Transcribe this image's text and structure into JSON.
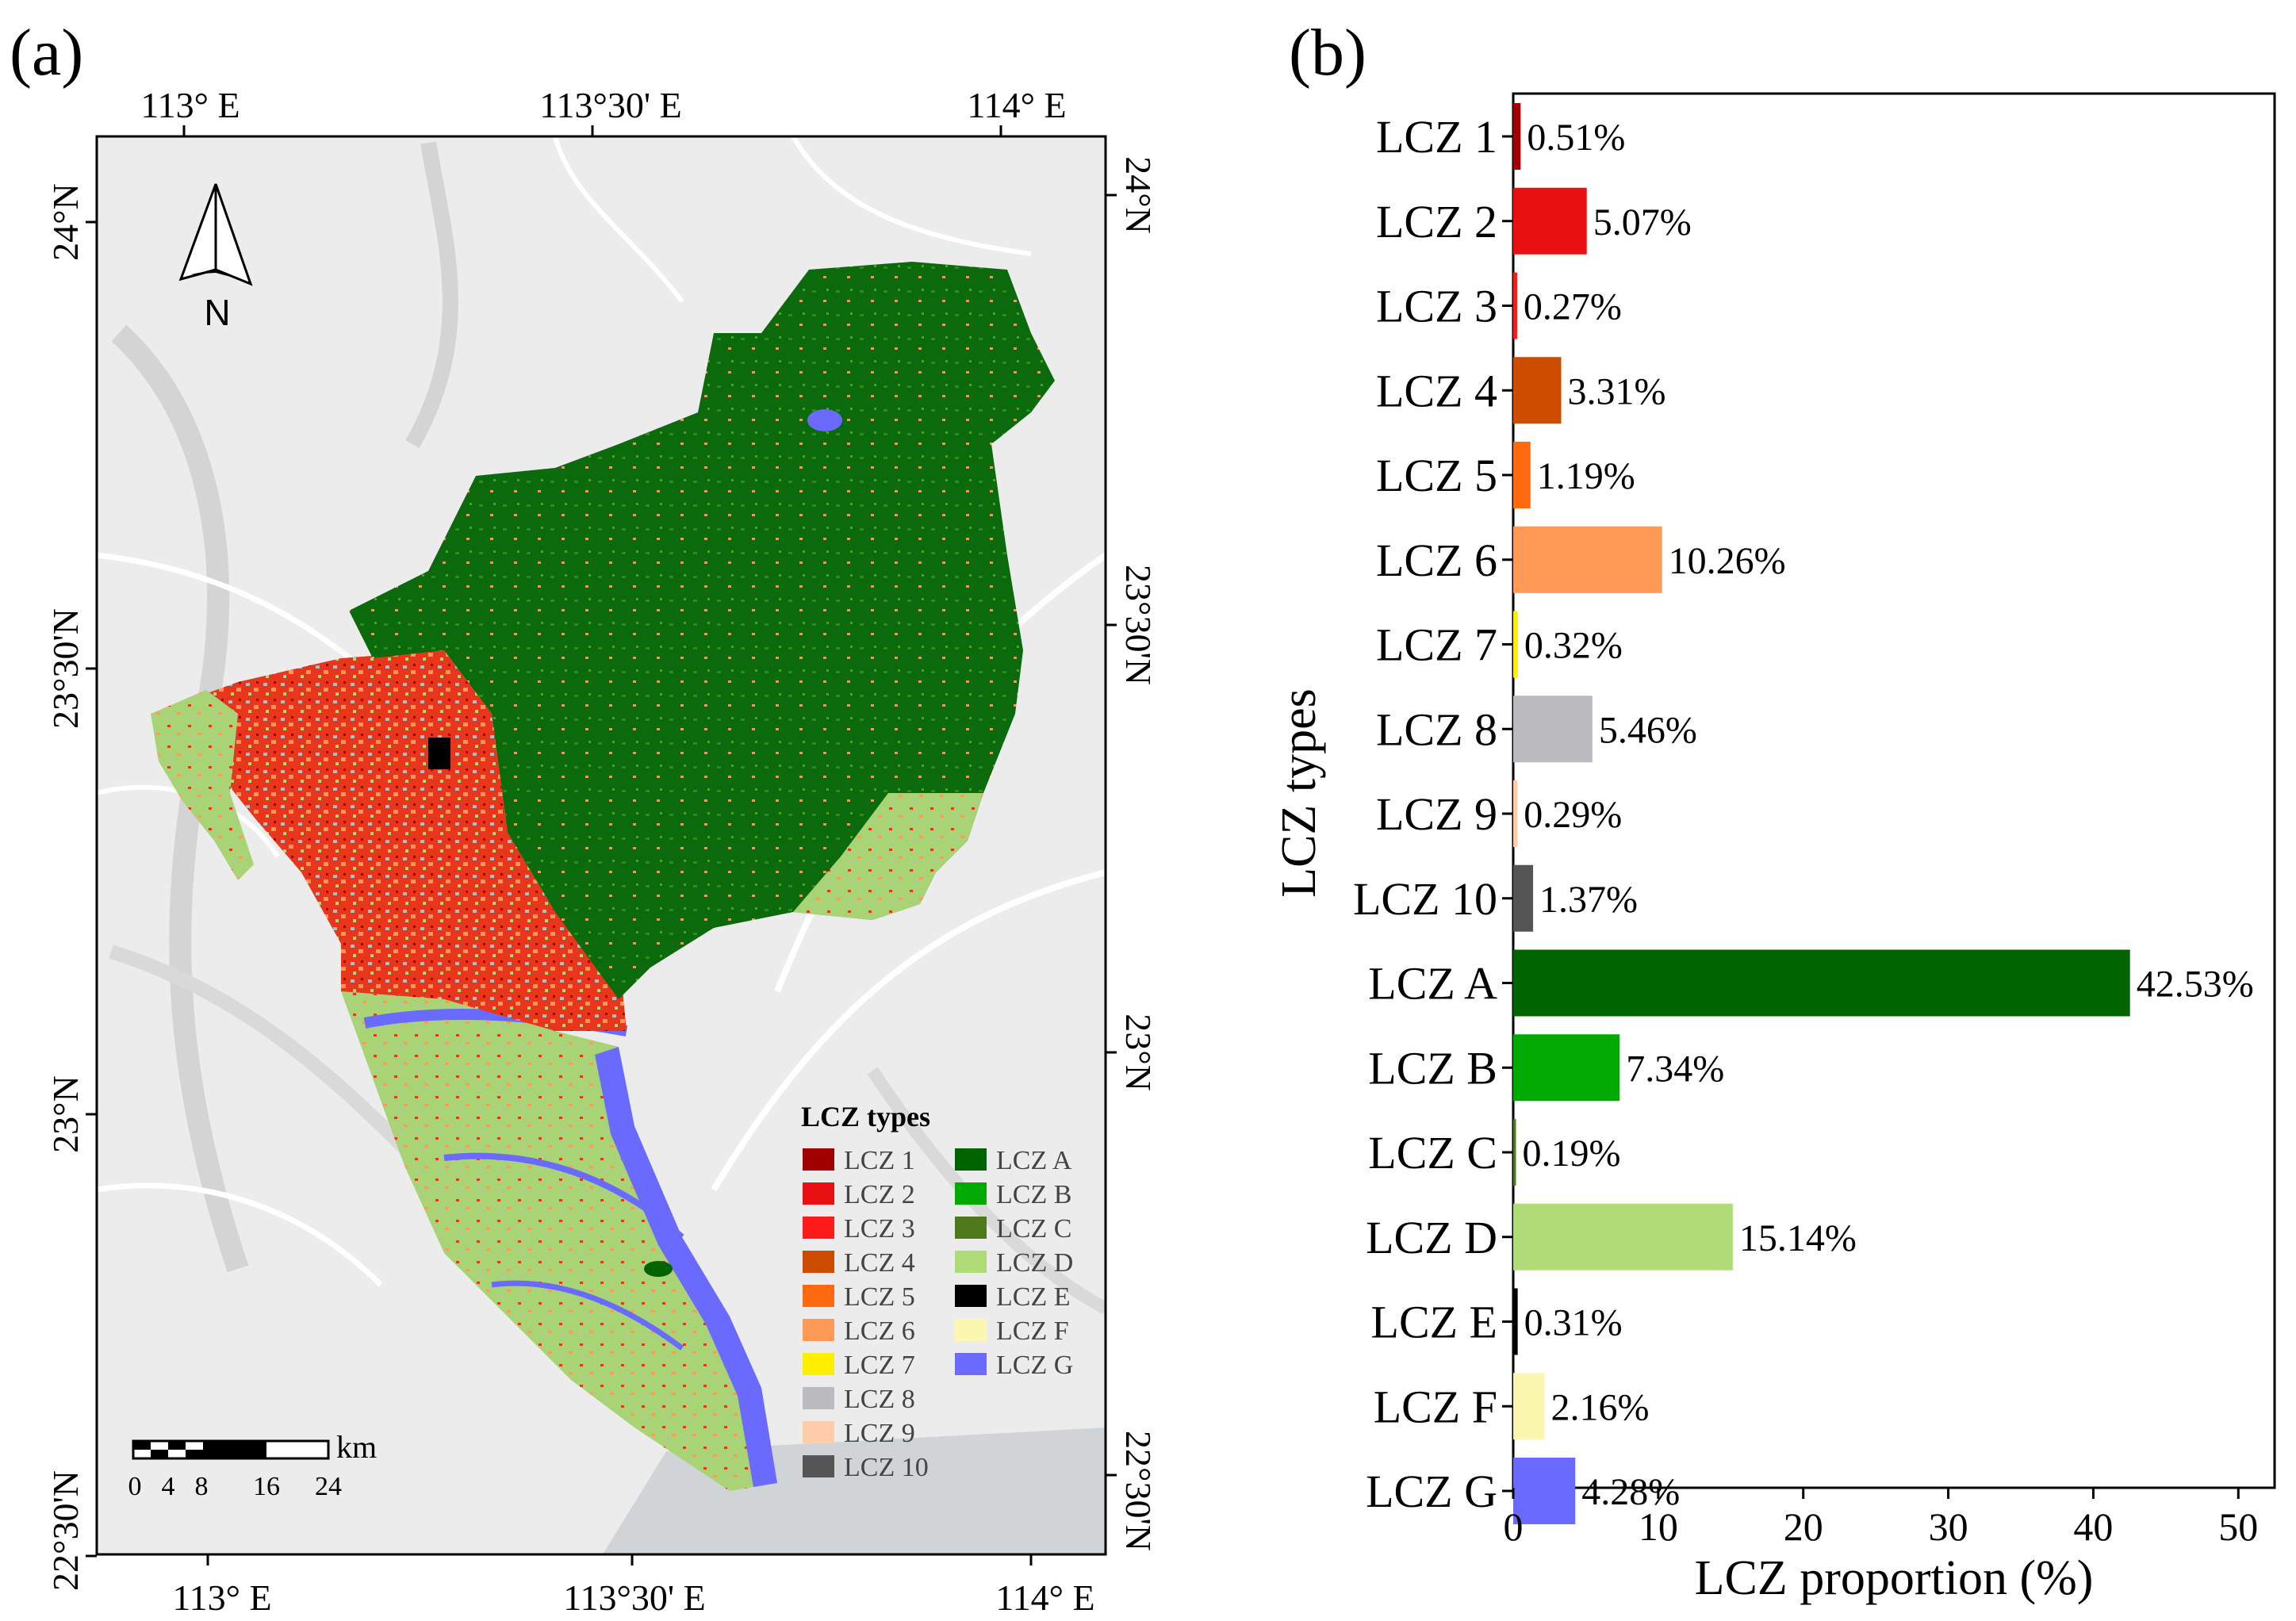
{
  "panel_a": {
    "label": "(a)",
    "lon_labels_top": [
      "113° E",
      "113°30' E",
      "114° E"
    ],
    "lon_labels_bottom": [
      "113° E",
      "113°30' E",
      "114° E"
    ],
    "lat_labels_left": [
      "24°N",
      "23°30'N",
      "23°N",
      "22°30'N"
    ],
    "lat_labels_right": [
      "24°N",
      "23°30'N",
      "23°N",
      "22°30'N"
    ],
    "north_label": "N",
    "scale_unit": "km",
    "scale_ticks": [
      "0",
      "4",
      "8",
      "16",
      "24"
    ],
    "legend_title": "LCZ types",
    "legend_items": [
      {
        "label": "LCZ 1",
        "color": "#a00000"
      },
      {
        "label": "LCZ 2",
        "color": "#e81010"
      },
      {
        "label": "LCZ 3",
        "color": "#ff1a1a"
      },
      {
        "label": "LCZ 4",
        "color": "#cc4d00"
      },
      {
        "label": "LCZ 5",
        "color": "#ff6a10"
      },
      {
        "label": "LCZ 6",
        "color": "#ff9955"
      },
      {
        "label": "LCZ 7",
        "color": "#ffee00"
      },
      {
        "label": "LCZ 8",
        "color": "#bbbbbf"
      },
      {
        "label": "LCZ 9",
        "color": "#ffccaa"
      },
      {
        "label": "LCZ 10",
        "color": "#555555"
      },
      {
        "label": "LCZ A",
        "color": "#006400"
      },
      {
        "label": "LCZ B",
        "color": "#00aa00"
      },
      {
        "label": "LCZ C",
        "color": "#4f7a1a"
      },
      {
        "label": "LCZ D",
        "color": "#b0dc78"
      },
      {
        "label": "LCZ E",
        "color": "#000000"
      },
      {
        "label": "LCZ F",
        "color": "#fbf7ae"
      },
      {
        "label": "LCZ G",
        "color": "#6a6aff"
      }
    ]
  },
  "panel_b": {
    "label": "(b)"
  },
  "chart_data": {
    "type": "bar",
    "orientation": "horizontal",
    "title": "",
    "xlabel": "LCZ proportion (%)",
    "ylabel": "LCZ types",
    "xlim": [
      0,
      52.5
    ],
    "xticks": [
      0,
      10,
      20,
      30,
      40,
      50
    ],
    "categories": [
      "LCZ 1",
      "LCZ 2",
      "LCZ 3",
      "LCZ 4",
      "LCZ 5",
      "LCZ 6",
      "LCZ 7",
      "LCZ 8",
      "LCZ 9",
      "LCZ 10",
      "LCZ A",
      "LCZ B",
      "LCZ C",
      "LCZ D",
      "LCZ E",
      "LCZ F",
      "LCZ G"
    ],
    "values": [
      0.51,
      5.07,
      0.27,
      3.31,
      1.19,
      10.26,
      0.32,
      5.46,
      0.29,
      1.37,
      42.53,
      7.34,
      0.19,
      15.14,
      0.31,
      2.16,
      4.28
    ],
    "value_labels": [
      "0.51%",
      "5.07%",
      "0.27%",
      "3.31%",
      "1.19%",
      "10.26%",
      "0.32%",
      "5.46%",
      "0.29%",
      "1.37%",
      "42.53%",
      "7.34%",
      "0.19%",
      "15.14%",
      "0.31%",
      "2.16%",
      "4.28%"
    ],
    "colors": [
      "#a00000",
      "#e81010",
      "#ff1a1a",
      "#cc4d00",
      "#ff6a10",
      "#ff9955",
      "#ffee00",
      "#bbbbbf",
      "#ffccaa",
      "#555555",
      "#006400",
      "#00aa00",
      "#4f7a1a",
      "#b0dc78",
      "#000000",
      "#fbf7ae",
      "#6a6aff"
    ],
    "grid": false,
    "legend": "none"
  }
}
